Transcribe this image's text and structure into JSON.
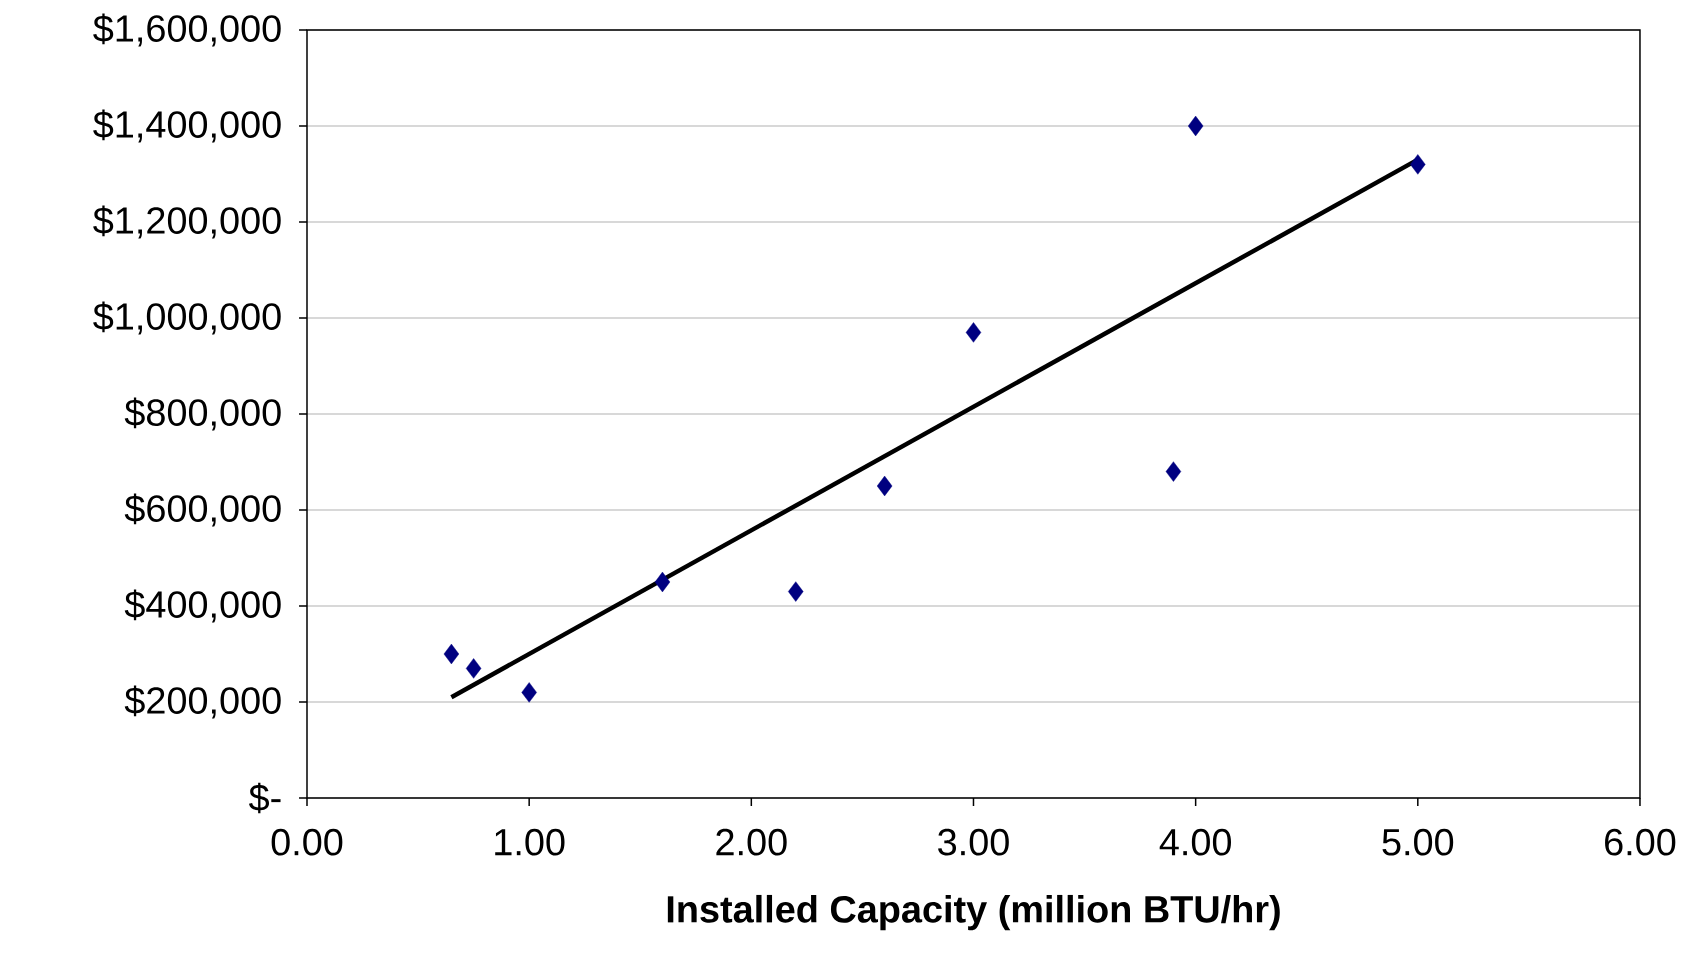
{
  "chart_data": {
    "type": "scatter",
    "xlabel": "Installed Capacity (million BTU/hr)",
    "xlim": [
      0,
      6
    ],
    "ylim": [
      0,
      1600000
    ],
    "xticks": [
      {
        "value": 0,
        "label": "0.00"
      },
      {
        "value": 1,
        "label": "1.00"
      },
      {
        "value": 2,
        "label": "2.00"
      },
      {
        "value": 3,
        "label": "3.00"
      },
      {
        "value": 4,
        "label": "4.00"
      },
      {
        "value": 5,
        "label": "5.00"
      },
      {
        "value": 6,
        "label": "6.00"
      }
    ],
    "yticks": [
      {
        "value": 0,
        "label": "$-"
      },
      {
        "value": 200000,
        "label": "$200,000"
      },
      {
        "value": 400000,
        "label": "$400,000"
      },
      {
        "value": 600000,
        "label": "$600,000"
      },
      {
        "value": 800000,
        "label": "$800,000"
      },
      {
        "value": 1000000,
        "label": "$1,000,000"
      },
      {
        "value": 1200000,
        "label": "$1,200,000"
      },
      {
        "value": 1400000,
        "label": "$1,400,000"
      },
      {
        "value": 1600000,
        "label": "$1,600,000"
      }
    ],
    "grid": "y",
    "series": [
      {
        "color": "#000080",
        "marker": "diamond",
        "x": [
          0.65,
          0.75,
          1.0,
          1.6,
          2.2,
          2.6,
          3.0,
          3.9,
          4.0,
          5.0
        ],
        "values": [
          300000,
          270000,
          220000,
          450000,
          430000,
          650000,
          970000,
          680000,
          1400000,
          1320000
        ]
      },
      {
        "type": "line",
        "color": "#000000",
        "line_style": "solid",
        "marker": "none",
        "x": [
          0.65,
          5.0
        ],
        "values": [
          210000,
          1330000
        ]
      }
    ]
  }
}
